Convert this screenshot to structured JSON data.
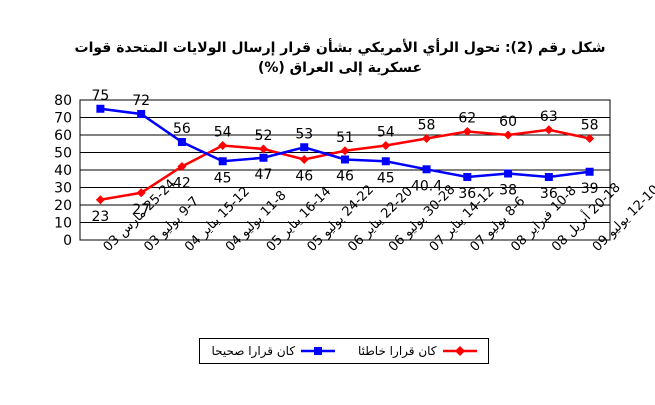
{
  "chart_data": {
    "type": "line",
    "title": "شكل رقم (2): تحول الرأي الأمريكي بشأن قرار إرسال الولايات المتحدة قوات عسكرية إلى العراق (%)",
    "categories": [
      "25-24 مارس 03",
      "9-7 يوليو 03",
      "15-12 يناير 04",
      "11-8 يوليو 04",
      "16-14 يناير 05",
      "24-22 يوليو 05",
      "22-20 يناير 06",
      "30-28 يوليو 06",
      "14-12 يناير 07",
      "8-6 يوليو 07",
      "10-8 فبراير 08",
      "20-18 أبريل 08",
      "12-10 يوليو 09"
    ],
    "series": [
      {
        "name": "كان قرارا خاطئا",
        "color": "#ff0000",
        "marker": "diamond",
        "values": [
          23,
          27,
          42,
          54,
          52,
          46,
          51,
          54,
          58,
          62,
          60,
          63,
          58
        ],
        "labels": [
          "23",
          "27",
          "42",
          "54",
          "52",
          "46",
          "51",
          "54",
          "58",
          "62",
          "60",
          "63",
          "58"
        ]
      },
      {
        "name": "كان قرارا صحيحا",
        "color": "#0000ff",
        "marker": "square",
        "values": [
          75,
          72,
          56,
          45,
          47,
          53,
          46,
          45,
          40.4,
          36,
          38,
          36,
          39
        ],
        "labels": [
          "75",
          "72",
          "56",
          "45",
          "47",
          "53",
          "46",
          "45",
          "40.4",
          "36",
          "38",
          "36",
          "39"
        ]
      }
    ],
    "ylim": [
      0,
      80
    ],
    "yticks": [
      "0",
      "10",
      "20",
      "30",
      "40",
      "50",
      "60",
      "70",
      "80"
    ],
    "grid": true,
    "legend_position": "bottom"
  }
}
